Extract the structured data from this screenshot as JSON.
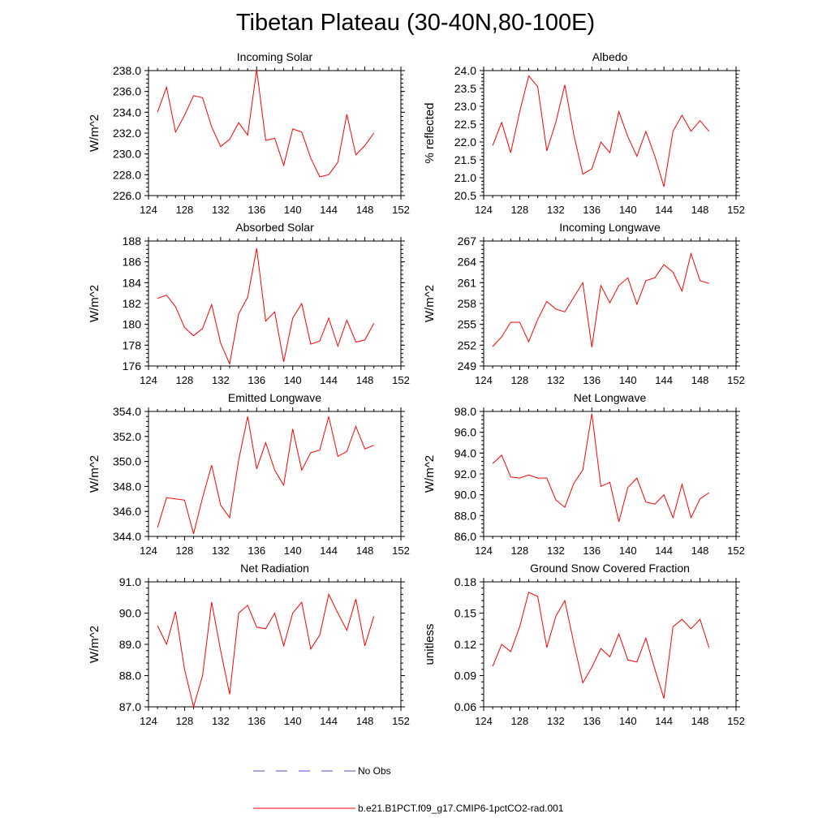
{
  "page": {
    "title": "Tibetan Plateau (30-40N,80-100E)"
  },
  "legend": {
    "items": [
      {
        "label": "No Obs",
        "color": "#4b4bc8",
        "dashed": true
      },
      {
        "label": "b.e21.B1PCT.f09_g17.CMIP6-1pctCO2-rad.001",
        "color": "#ff0000",
        "dashed": false
      }
    ]
  },
  "chart_data": [
    {
      "type": "line",
      "title": "Incoming Solar",
      "ylabel": "W/m^2",
      "xlim": [
        124,
        152
      ],
      "x_ticks": [
        "124",
        "128",
        "132",
        "136",
        "140",
        "144",
        "148",
        "152"
      ],
      "ylim": [
        226.0,
        238.0
      ],
      "y_ticks": [
        "226.0",
        "228.0",
        "230.0",
        "232.0",
        "234.0",
        "236.0",
        "238.0"
      ],
      "y_minor": 0.4,
      "series": [
        {
          "color": "#ff0000",
          "x": [
            125,
            126,
            127,
            128,
            129,
            130,
            131,
            132,
            133,
            134,
            135,
            136,
            137,
            138,
            139,
            140,
            141,
            142,
            143,
            144,
            145,
            146,
            147,
            148,
            149
          ],
          "y": [
            234.0,
            236.4,
            232.1,
            233.7,
            235.6,
            235.4,
            232.6,
            230.7,
            231.4,
            233.0,
            231.8,
            238.1,
            231.3,
            231.5,
            228.9,
            232.4,
            232.1,
            229.6,
            227.8,
            228.0,
            229.2,
            233.8,
            229.9,
            230.8,
            232.0
          ]
        }
      ]
    },
    {
      "type": "line",
      "title": "Albedo",
      "ylabel": "% reflected",
      "xlim": [
        124,
        152
      ],
      "x_ticks": [
        "124",
        "128",
        "132",
        "136",
        "140",
        "144",
        "148",
        "152"
      ],
      "ylim": [
        20.5,
        24.0
      ],
      "y_ticks": [
        "20.5",
        "21.0",
        "21.5",
        "22.0",
        "22.5",
        "23.0",
        "23.5",
        "24.0"
      ],
      "y_minor": 0.1,
      "series": [
        {
          "color": "#ff0000",
          "x": [
            125,
            126,
            127,
            128,
            129,
            130,
            131,
            132,
            133,
            134,
            135,
            136,
            137,
            138,
            139,
            140,
            141,
            142,
            143,
            144,
            145,
            146,
            147,
            148,
            149
          ],
          "y": [
            21.9,
            22.55,
            21.7,
            22.85,
            23.85,
            23.55,
            21.75,
            22.55,
            23.6,
            22.2,
            21.1,
            21.25,
            22.0,
            21.7,
            22.85,
            22.15,
            21.6,
            22.3,
            21.6,
            20.75,
            22.3,
            22.75,
            22.3,
            22.6,
            22.3
          ]
        }
      ]
    },
    {
      "type": "line",
      "title": "Absorbed Solar",
      "ylabel": "W/m^2",
      "xlim": [
        124,
        152
      ],
      "x_ticks": [
        "124",
        "128",
        "132",
        "136",
        "140",
        "144",
        "148",
        "152"
      ],
      "ylim": [
        176,
        188
      ],
      "y_ticks": [
        "176",
        "178",
        "180",
        "182",
        "184",
        "186",
        "188"
      ],
      "y_minor": 0.4,
      "series": [
        {
          "color": "#ff0000",
          "x": [
            125,
            126,
            127,
            128,
            129,
            130,
            131,
            132,
            133,
            134,
            135,
            136,
            137,
            138,
            139,
            140,
            141,
            142,
            143,
            144,
            145,
            146,
            147,
            148,
            149
          ],
          "y": [
            182.5,
            182.8,
            181.7,
            179.7,
            178.9,
            179.6,
            181.9,
            178.2,
            176.2,
            181.0,
            182.6,
            187.3,
            180.3,
            181.2,
            176.4,
            180.6,
            182.0,
            178.1,
            178.4,
            180.6,
            177.9,
            180.4,
            178.3,
            178.5,
            180.1
          ]
        }
      ]
    },
    {
      "type": "line",
      "title": "Incoming Longwave",
      "ylabel": "W/m^2",
      "xlim": [
        124,
        152
      ],
      "x_ticks": [
        "124",
        "128",
        "132",
        "136",
        "140",
        "144",
        "148",
        "152"
      ],
      "ylim": [
        249,
        267
      ],
      "y_ticks": [
        "249",
        "252",
        "255",
        "258",
        "261",
        "264",
        "267"
      ],
      "y_minor": 0.6,
      "series": [
        {
          "color": "#ff0000",
          "x": [
            125,
            126,
            127,
            128,
            129,
            130,
            131,
            132,
            133,
            134,
            135,
            136,
            137,
            138,
            139,
            140,
            141,
            142,
            143,
            144,
            145,
            146,
            147,
            148,
            149
          ],
          "y": [
            251.8,
            253.2,
            255.3,
            255.3,
            252.5,
            255.7,
            258.3,
            257.2,
            256.8,
            258.9,
            261.0,
            251.7,
            260.6,
            258.1,
            260.6,
            261.7,
            257.9,
            261.3,
            261.7,
            263.6,
            262.5,
            259.8,
            265.2,
            261.3,
            260.9
          ]
        }
      ]
    },
    {
      "type": "line",
      "title": "Emitted Longwave",
      "ylabel": "W/m^2",
      "xlim": [
        124,
        152
      ],
      "x_ticks": [
        "124",
        "128",
        "132",
        "136",
        "140",
        "144",
        "148",
        "152"
      ],
      "ylim": [
        344.0,
        354.0
      ],
      "y_ticks": [
        "344.0",
        "346.0",
        "348.0",
        "350.0",
        "352.0",
        "354.0"
      ],
      "y_minor": 0.4,
      "series": [
        {
          "color": "#ff0000",
          "x": [
            125,
            126,
            127,
            128,
            129,
            130,
            131,
            132,
            133,
            134,
            135,
            136,
            137,
            138,
            139,
            140,
            141,
            142,
            143,
            144,
            145,
            146,
            147,
            148,
            149
          ],
          "y": [
            344.7,
            347.1,
            347.0,
            346.9,
            344.2,
            347.1,
            349.7,
            346.5,
            345.5,
            350.1,
            353.6,
            349.4,
            351.5,
            349.3,
            348.1,
            352.6,
            349.3,
            350.7,
            350.9,
            353.6,
            350.4,
            350.8,
            352.8,
            351.0,
            351.3
          ]
        }
      ]
    },
    {
      "type": "line",
      "title": "Net Longwave",
      "ylabel": "W/m^2",
      "xlim": [
        124,
        152
      ],
      "x_ticks": [
        "124",
        "128",
        "132",
        "136",
        "140",
        "144",
        "148",
        "152"
      ],
      "ylim": [
        86.0,
        98.0
      ],
      "y_ticks": [
        "86.0",
        "88.0",
        "90.0",
        "92.0",
        "94.0",
        "96.0",
        "98.0"
      ],
      "y_minor": 0.4,
      "series": [
        {
          "color": "#ff0000",
          "x": [
            125,
            126,
            127,
            128,
            129,
            130,
            131,
            132,
            133,
            134,
            135,
            136,
            137,
            138,
            139,
            140,
            141,
            142,
            143,
            144,
            145,
            146,
            147,
            148,
            149
          ],
          "y": [
            93.0,
            93.8,
            91.7,
            91.6,
            91.9,
            91.6,
            91.6,
            89.5,
            88.8,
            91.1,
            92.4,
            97.8,
            90.8,
            91.2,
            87.4,
            90.7,
            91.6,
            89.3,
            89.1,
            90.0,
            87.8,
            91.0,
            87.8,
            89.6,
            90.2
          ]
        }
      ]
    },
    {
      "type": "line",
      "title": "Net Radiation",
      "ylabel": "W/m^2",
      "xlim": [
        124,
        152
      ],
      "x_ticks": [
        "124",
        "128",
        "132",
        "136",
        "140",
        "144",
        "148",
        "152"
      ],
      "ylim": [
        87.0,
        91.0
      ],
      "y_ticks": [
        "87.0",
        "88.0",
        "89.0",
        "90.0",
        "91.0"
      ],
      "y_minor": 0.2,
      "series": [
        {
          "color": "#ff0000",
          "x": [
            125,
            126,
            127,
            128,
            129,
            130,
            131,
            132,
            133,
            134,
            135,
            136,
            137,
            138,
            139,
            140,
            141,
            142,
            143,
            144,
            145,
            146,
            147,
            148,
            149
          ],
          "y": [
            89.6,
            89.0,
            90.05,
            88.2,
            87.0,
            88.0,
            90.35,
            88.8,
            87.4,
            90.0,
            90.25,
            89.55,
            89.5,
            90.0,
            88.95,
            90.0,
            90.35,
            88.85,
            89.3,
            90.6,
            90.0,
            89.45,
            90.45,
            88.95,
            89.9
          ]
        }
      ]
    },
    {
      "type": "line",
      "title": "Ground Snow Covered Fraction",
      "ylabel": "unitless",
      "xlim": [
        124,
        152
      ],
      "x_ticks": [
        "124",
        "128",
        "132",
        "136",
        "140",
        "144",
        "148",
        "152"
      ],
      "ylim": [
        0.06,
        0.18
      ],
      "y_ticks": [
        "0.06",
        "0.09",
        "0.12",
        "0.15",
        "0.18"
      ],
      "y_minor": 0.006,
      "series": [
        {
          "color": "#ff0000",
          "x": [
            125,
            126,
            127,
            128,
            129,
            130,
            131,
            132,
            133,
            134,
            135,
            136,
            137,
            138,
            139,
            140,
            141,
            142,
            143,
            144,
            145,
            146,
            147,
            148,
            149
          ],
          "y": [
            0.099,
            0.12,
            0.113,
            0.137,
            0.17,
            0.166,
            0.117,
            0.147,
            0.162,
            0.121,
            0.083,
            0.098,
            0.116,
            0.108,
            0.13,
            0.105,
            0.103,
            0.126,
            0.096,
            0.068,
            0.137,
            0.144,
            0.135,
            0.144,
            0.117
          ]
        }
      ]
    }
  ]
}
